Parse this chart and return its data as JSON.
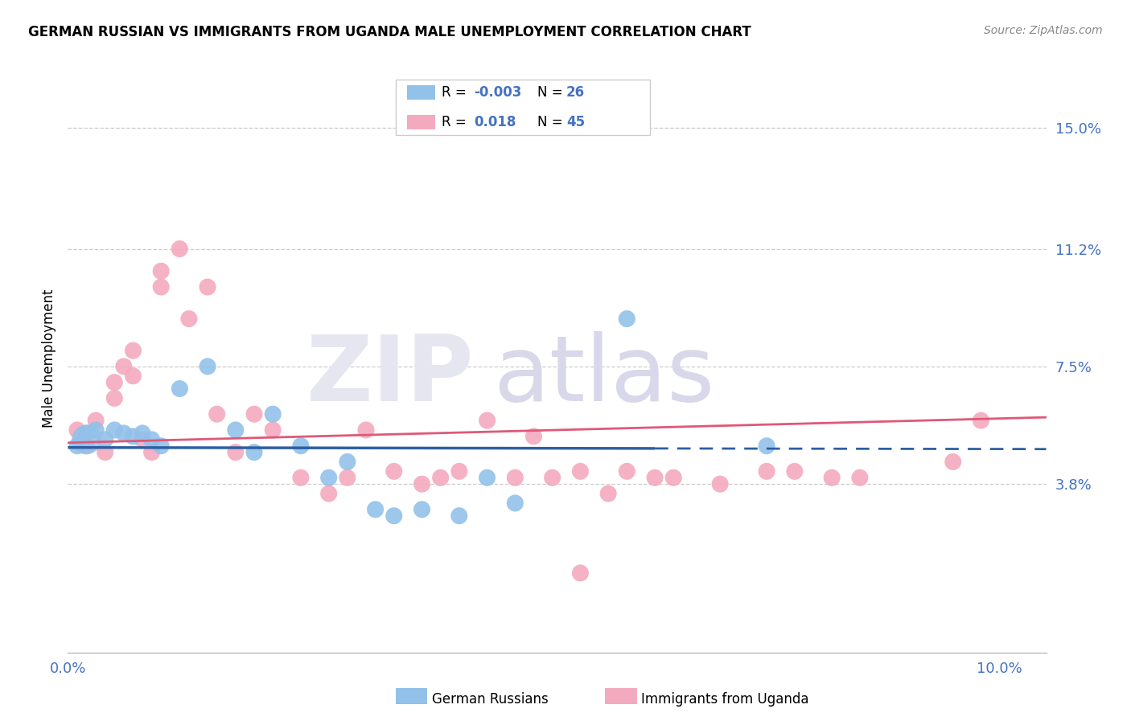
{
  "title": "GERMAN RUSSIAN VS IMMIGRANTS FROM UGANDA MALE UNEMPLOYMENT CORRELATION CHART",
  "source": "Source: ZipAtlas.com",
  "ylabel": "Male Unemployment",
  "xlim": [
    0.0,
    0.105
  ],
  "ylim": [
    -0.015,
    0.17
  ],
  "yticks": [
    0.038,
    0.075,
    0.112,
    0.15
  ],
  "ytick_labels": [
    "3.8%",
    "7.5%",
    "11.2%",
    "15.0%"
  ],
  "xticks": [
    0.0,
    0.02,
    0.04,
    0.06,
    0.08,
    0.1
  ],
  "xtick_labels": [
    "0.0%",
    "",
    "",
    "",
    "",
    "10.0%"
  ],
  "blue_color": "#92C1E9",
  "pink_color": "#F4AABE",
  "trend_blue": "#2E5FA3",
  "trend_pink": "#E05878",
  "background": "#FFFFFF",
  "grid_color": "#CCCCCC",
  "axis_label_color": "#4472C4",
  "gr_x": [
    0.001,
    0.002,
    0.003,
    0.004,
    0.005,
    0.006,
    0.007,
    0.008,
    0.009,
    0.01,
    0.012,
    0.015,
    0.018,
    0.02,
    0.022,
    0.025,
    0.028,
    0.03,
    0.033,
    0.035,
    0.038,
    0.042,
    0.045,
    0.048,
    0.06,
    0.075
  ],
  "gr_y": [
    0.05,
    0.054,
    0.055,
    0.052,
    0.055,
    0.054,
    0.053,
    0.054,
    0.052,
    0.05,
    0.068,
    0.075,
    0.055,
    0.048,
    0.06,
    0.05,
    0.04,
    0.045,
    0.03,
    0.028,
    0.03,
    0.028,
    0.04,
    0.032,
    0.09,
    0.05
  ],
  "ug_x": [
    0.001,
    0.002,
    0.003,
    0.004,
    0.005,
    0.005,
    0.006,
    0.007,
    0.007,
    0.008,
    0.009,
    0.01,
    0.01,
    0.012,
    0.013,
    0.015,
    0.016,
    0.018,
    0.02,
    0.022,
    0.025,
    0.028,
    0.03,
    0.032,
    0.035,
    0.038,
    0.04,
    0.042,
    0.045,
    0.048,
    0.05,
    0.052,
    0.055,
    0.055,
    0.058,
    0.06,
    0.063,
    0.065,
    0.07,
    0.075,
    0.078,
    0.082,
    0.085,
    0.095,
    0.098
  ],
  "ug_y": [
    0.055,
    0.05,
    0.058,
    0.048,
    0.065,
    0.07,
    0.075,
    0.072,
    0.08,
    0.052,
    0.048,
    0.1,
    0.105,
    0.112,
    0.09,
    0.1,
    0.06,
    0.048,
    0.06,
    0.055,
    0.04,
    0.035,
    0.04,
    0.055,
    0.042,
    0.038,
    0.04,
    0.042,
    0.058,
    0.04,
    0.053,
    0.04,
    0.01,
    0.042,
    0.035,
    0.042,
    0.04,
    0.04,
    0.038,
    0.042,
    0.042,
    0.04,
    0.04,
    0.045,
    0.058
  ],
  "gr_trend_y0": 0.0495,
  "gr_trend_y1": 0.049,
  "ug_trend_y0": 0.051,
  "ug_trend_y1": 0.059
}
